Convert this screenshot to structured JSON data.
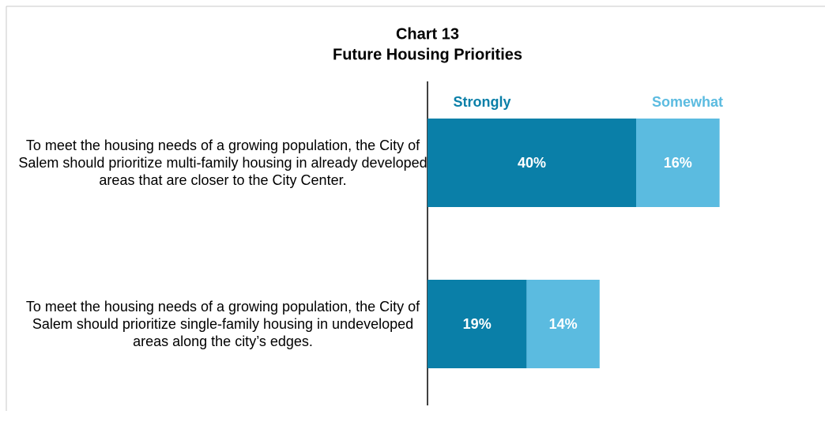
{
  "chart_data": {
    "type": "stacked_barh",
    "title": "Chart 13",
    "subtitle": "Future Housing Priorities",
    "categories": [
      "To meet the housing needs of a growing population, the City of Salem should prioritize multi-family housing in already developed areas that are closer to the City Center.",
      "To meet the housing needs of a growing population, the City of Salem should prioritize single-family housing in undeveloped areas along the city’s edges."
    ],
    "series": [
      {
        "name": "Strongly",
        "color": "#0a7fa8",
        "values": [
          40,
          19
        ],
        "value_labels": [
          "40%",
          "19%"
        ]
      },
      {
        "name": "Somewhat",
        "color": "#5bbbe0",
        "values": [
          16,
          14
        ],
        "value_labels": [
          "16%",
          "14%"
        ]
      }
    ]
  }
}
